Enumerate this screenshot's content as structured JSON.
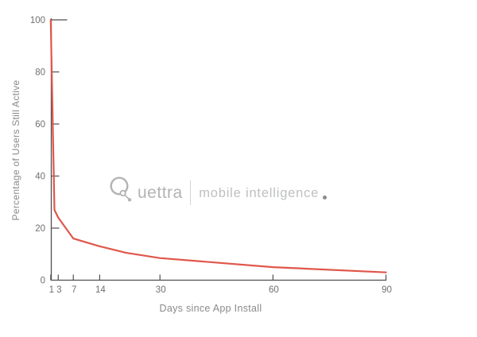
{
  "watermark": {
    "brand": "Quettra",
    "brand_after_logo": "uettra",
    "tagline": "mobile intelligence",
    "logo_icon": "quettra-q-node-logo"
  },
  "chart_data": {
    "type": "line",
    "title": "",
    "xlabel": "Days since App Install",
    "ylabel": "Percentage of Users Still Active",
    "x": [
      1,
      2,
      3,
      5,
      7,
      14,
      21,
      30,
      60,
      90
    ],
    "series": [
      {
        "name": "Percentage of users still active",
        "values": [
          100,
          27,
          24,
          20,
          16,
          13,
          10.5,
          8.5,
          5,
          3
        ]
      }
    ],
    "x_ticks": [
      1,
      3,
      7,
      14,
      30,
      60,
      90
    ],
    "y_ticks": [
      0,
      20,
      40,
      60,
      80,
      100
    ],
    "xlim": [
      1,
      90
    ],
    "ylim": [
      0,
      100
    ],
    "grid": false,
    "legend": "none"
  },
  "colors": {
    "line": "#e0564b",
    "axis": "#4f4f4f",
    "tick_label": "#6f6f6f",
    "axis_title": "#8a8a8a",
    "watermark_gray": "#b3b3b3",
    "tagline_gray": "#bdbfc1",
    "divider_gray": "#d4d4d4",
    "dot_gray": "#8c8c8c"
  }
}
